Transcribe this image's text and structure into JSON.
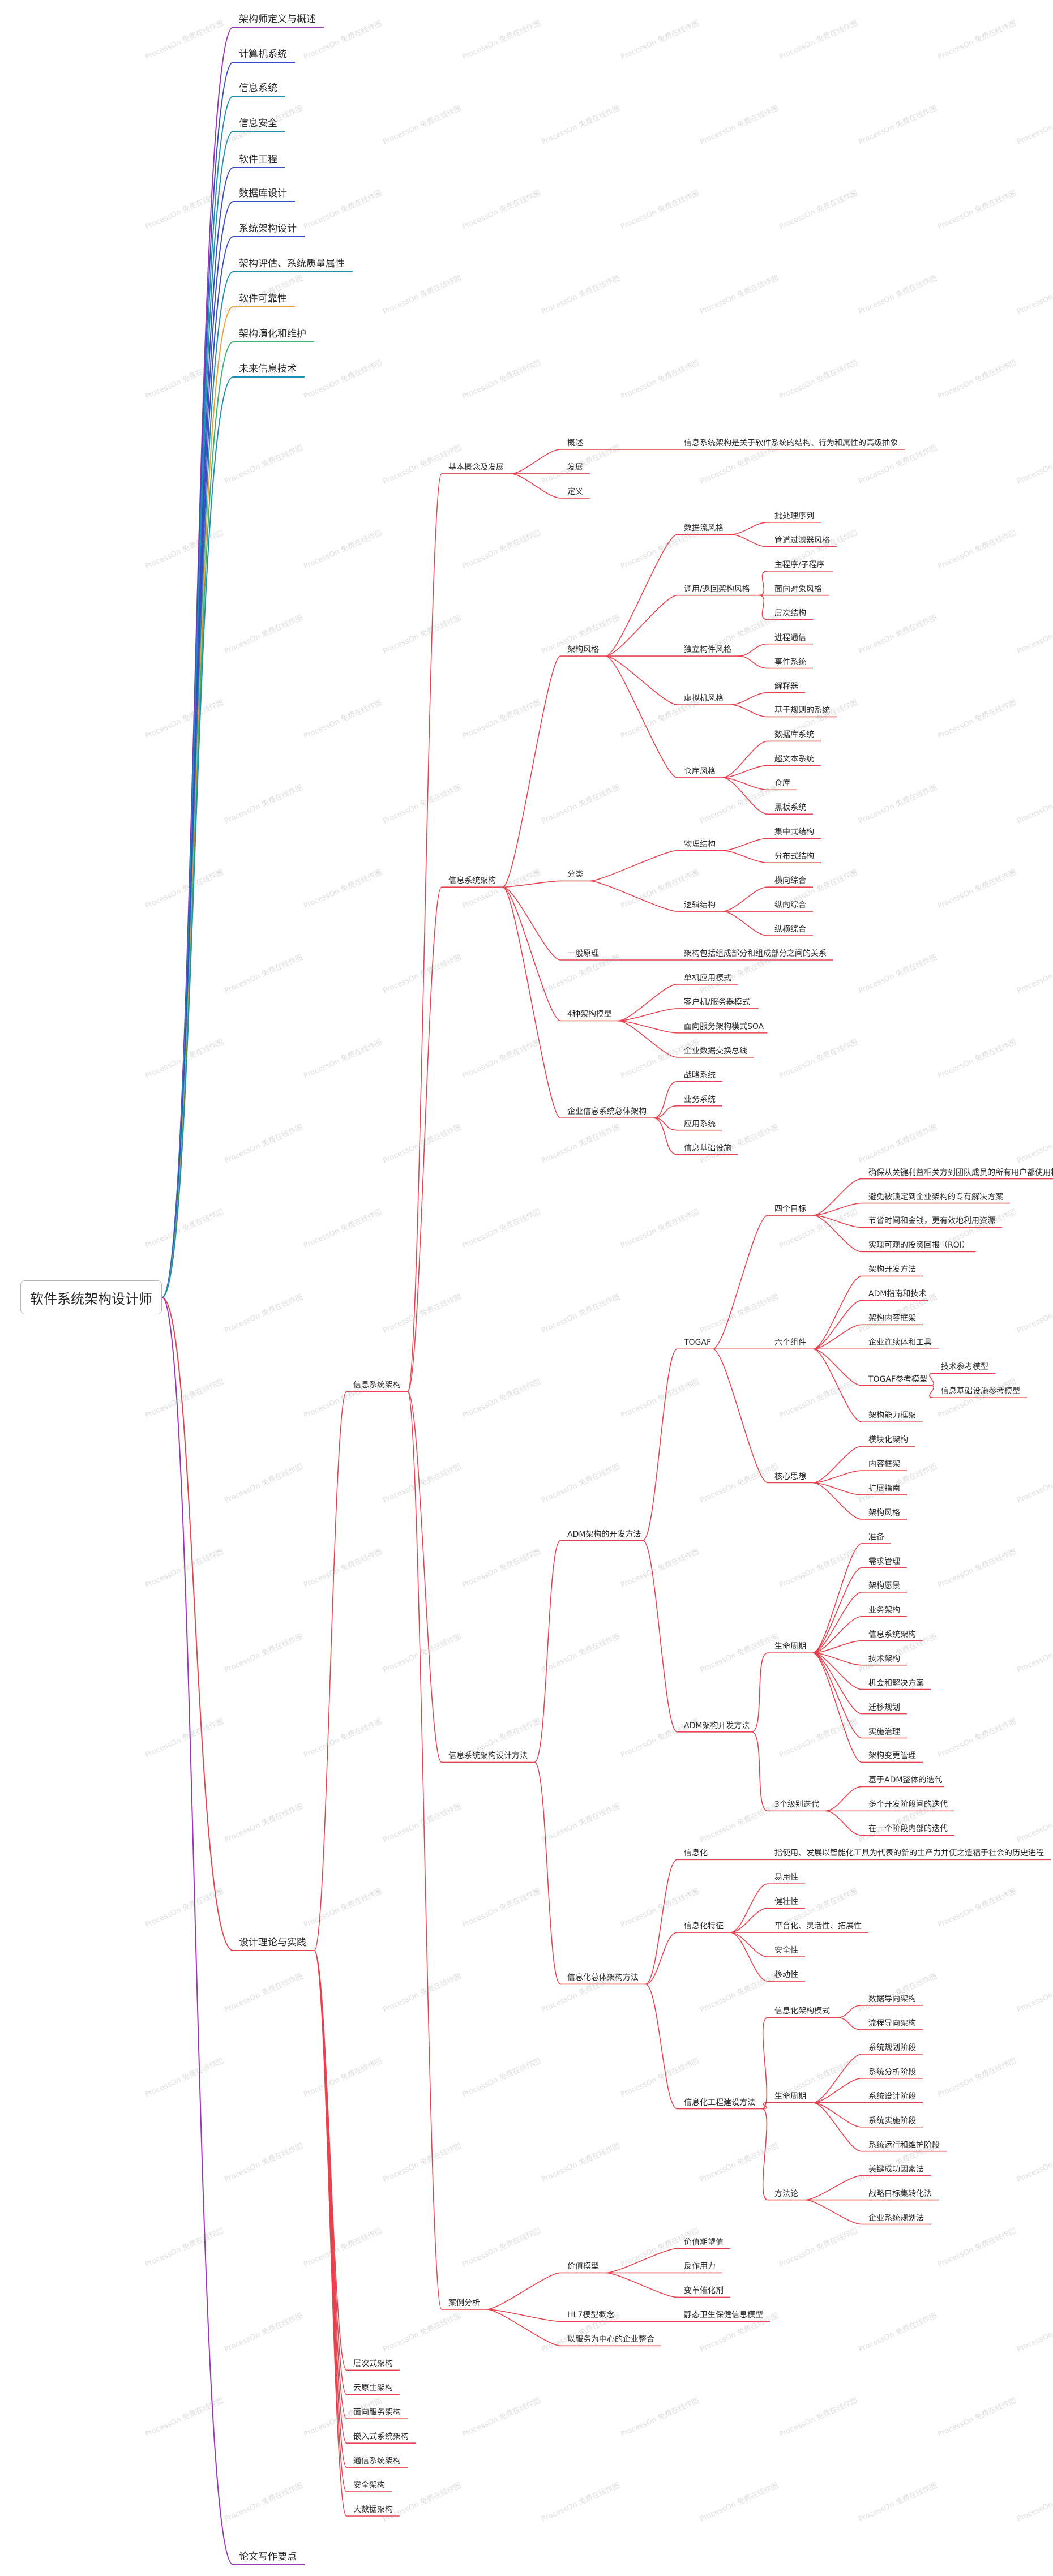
{
  "root": "软件系统架构设计师",
  "watermark": "ProcessOn 免费在线作图",
  "colors": {
    "red": "#e8414d",
    "purple": "#9a35b5",
    "blue": "#3a4cc4",
    "teal": "#1d8fb0",
    "orange": "#f0a137",
    "green": "#3ab56b"
  },
  "topics": [
    {
      "label": "架构师定义与概述",
      "color": "#9a35b5"
    },
    {
      "label": "计算机系统",
      "color": "#3a4cc4"
    },
    {
      "label": "信息系统",
      "color": "#1d8fb0"
    },
    {
      "label": "信息安全",
      "color": "#1d8fb0"
    },
    {
      "label": "软件工程",
      "color": "#3a4cc4"
    },
    {
      "label": "数据库设计",
      "color": "#3a4cc4"
    },
    {
      "label": "系统架构设计",
      "color": "#3a4cc4"
    },
    {
      "label": "架构评估、系统质量属性",
      "color": "#1d8fb0"
    },
    {
      "label": "软件可靠性",
      "color": "#f0a137"
    },
    {
      "label": "架构演化和维护",
      "color": "#3ab56b"
    },
    {
      "label": "未来信息技术",
      "color": "#1d8fb0"
    },
    {
      "label": "设计理论与实践",
      "color": "#e8414d"
    },
    {
      "label": "论文写作要点",
      "color": "#9a35b5"
    }
  ],
  "tree": {
    "label": "设计理论与实践",
    "children": [
      {
        "label": "信息系统架构",
        "children": [
          {
            "label": "基本概念及发展",
            "children": [
              {
                "label": "概述",
                "children": [
                  {
                    "label": "信息系统架构是关于软件系统的结构、行为和属性的高级抽象"
                  }
                ]
              },
              {
                "label": "发展"
              },
              {
                "label": "定义"
              }
            ]
          },
          {
            "label": "信息系统架构",
            "children": [
              {
                "label": "架构风格",
                "children": [
                  {
                    "label": "数据流风格",
                    "children": [
                      {
                        "label": "批处理序列"
                      },
                      {
                        "label": "管道过滤器风格"
                      }
                    ]
                  },
                  {
                    "label": "调用/返回架构风格",
                    "children": [
                      {
                        "label": "主程序/子程序"
                      },
                      {
                        "label": "面向对象风格"
                      },
                      {
                        "label": "层次结构"
                      }
                    ]
                  },
                  {
                    "label": "独立构件风格",
                    "children": [
                      {
                        "label": "进程通信"
                      },
                      {
                        "label": "事件系统"
                      }
                    ]
                  },
                  {
                    "label": "虚拟机风格",
                    "children": [
                      {
                        "label": "解释器"
                      },
                      {
                        "label": "基于规则的系统"
                      }
                    ]
                  },
                  {
                    "label": "仓库风格",
                    "children": [
                      {
                        "label": "数据库系统"
                      },
                      {
                        "label": "超文本系统"
                      },
                      {
                        "label": "仓库"
                      },
                      {
                        "label": "黑板系统"
                      }
                    ]
                  }
                ]
              },
              {
                "label": "分类",
                "children": [
                  {
                    "label": "物理结构",
                    "children": [
                      {
                        "label": "集中式结构"
                      },
                      {
                        "label": "分布式结构"
                      }
                    ]
                  },
                  {
                    "label": "逻辑结构",
                    "children": [
                      {
                        "label": "横向综合"
                      },
                      {
                        "label": "纵向综合"
                      },
                      {
                        "label": "纵横综合"
                      }
                    ]
                  }
                ]
              },
              {
                "label": "一般原理",
                "children": [
                  {
                    "label": "架构包括组成部分和组成部分之间的关系"
                  }
                ]
              },
              {
                "label": "4种架构模型",
                "children": [
                  {
                    "label": "单机应用模式"
                  },
                  {
                    "label": "客户机/服务器模式"
                  },
                  {
                    "label": "面向服务架构模式SOA"
                  },
                  {
                    "label": "企业数据交换总线"
                  }
                ]
              },
              {
                "label": "企业信息系统总体架构",
                "children": [
                  {
                    "label": "战略系统"
                  },
                  {
                    "label": "业务系统"
                  },
                  {
                    "label": "应用系统"
                  },
                  {
                    "label": "信息基础设施"
                  }
                ]
              }
            ]
          },
          {
            "label": "信息系统架构设计方法",
            "children": [
              {
                "label": "ADM架构的开发方法",
                "children": [
                  {
                    "label": "TOGAF",
                    "children": [
                      {
                        "label": "四个目标",
                        "children": [
                          {
                            "label": "确保从关键利益相关方到团队成员的所有用户都使用相同的语言"
                          },
                          {
                            "label": "避免被锁定到企业架构的专有解决方案"
                          },
                          {
                            "label": "节省时间和金钱，更有效地利用资源"
                          },
                          {
                            "label": "实现可观的投资回报（ROI）"
                          }
                        ]
                      },
                      {
                        "label": "六个组件",
                        "children": [
                          {
                            "label": "架构开发方法"
                          },
                          {
                            "label": "ADM指南和技术"
                          },
                          {
                            "label": "架构内容框架"
                          },
                          {
                            "label": "企业连续体和工具"
                          },
                          {
                            "label": "TOGAF参考模型",
                            "children": [
                              {
                                "label": "技术参考模型"
                              },
                              {
                                "label": "信息基础设施参考模型"
                              }
                            ]
                          },
                          {
                            "label": "架构能力框架"
                          }
                        ]
                      },
                      {
                        "label": "核心思想",
                        "children": [
                          {
                            "label": "模块化架构"
                          },
                          {
                            "label": "内容框架"
                          },
                          {
                            "label": "扩展指南"
                          },
                          {
                            "label": "架构风格"
                          }
                        ]
                      }
                    ]
                  },
                  {
                    "label": "ADM架构开发方法",
                    "children": [
                      {
                        "label": "生命周期",
                        "children": [
                          {
                            "label": "准备"
                          },
                          {
                            "label": "需求管理"
                          },
                          {
                            "label": "架构愿景"
                          },
                          {
                            "label": "业务架构"
                          },
                          {
                            "label": "信息系统架构"
                          },
                          {
                            "label": "技术架构"
                          },
                          {
                            "label": "机会和解决方案"
                          },
                          {
                            "label": "迁移规划"
                          },
                          {
                            "label": "实施治理"
                          },
                          {
                            "label": "架构变更管理"
                          }
                        ]
                      },
                      {
                        "label": "3个级别迭代",
                        "children": [
                          {
                            "label": "基于ADM整体的迭代"
                          },
                          {
                            "label": "多个开发阶段间的迭代"
                          },
                          {
                            "label": "在一个阶段内部的迭代"
                          }
                        ]
                      }
                    ]
                  }
                ]
              },
              {
                "label": "信息化总体架构方法",
                "children": [
                  {
                    "label": "信息化",
                    "children": [
                      {
                        "label": "指使用、发展以智能化工具为代表的新的生产力并使之造福于社会的历史进程"
                      }
                    ]
                  },
                  {
                    "label": "信息化特征",
                    "children": [
                      {
                        "label": "易用性"
                      },
                      {
                        "label": "健壮性"
                      },
                      {
                        "label": "平台化、灵活性、拓展性"
                      },
                      {
                        "label": "安全性"
                      },
                      {
                        "label": "移动性"
                      }
                    ]
                  },
                  {
                    "label": "信息化工程建设方法",
                    "children": [
                      {
                        "label": "信息化架构模式",
                        "children": [
                          {
                            "label": "数据导向架构"
                          },
                          {
                            "label": "流程导向架构"
                          }
                        ]
                      },
                      {
                        "label": "生命周期",
                        "children": [
                          {
                            "label": "系统规划阶段"
                          },
                          {
                            "label": "系统分析阶段"
                          },
                          {
                            "label": "系统设计阶段"
                          },
                          {
                            "label": "系统实施阶段"
                          },
                          {
                            "label": "系统运行和维护阶段"
                          }
                        ]
                      },
                      {
                        "label": "方法论",
                        "children": [
                          {
                            "label": "关键成功因素法"
                          },
                          {
                            "label": "战略目标集转化法"
                          },
                          {
                            "label": "企业系统规划法"
                          }
                        ]
                      }
                    ]
                  }
                ]
              }
            ]
          },
          {
            "label": "案例分析",
            "children": [
              {
                "label": "价值模型",
                "children": [
                  {
                    "label": "价值期望值"
                  },
                  {
                    "label": "反作用力"
                  },
                  {
                    "label": "变革催化剂"
                  }
                ]
              },
              {
                "label": "HL7模型概念",
                "children": [
                  {
                    "label": "静态卫生保健信息模型"
                  }
                ]
              },
              {
                "label": "以服务为中心的企业整合"
              }
            ]
          }
        ]
      },
      {
        "label": "层次式架构"
      },
      {
        "label": "云原生架构"
      },
      {
        "label": "面向服务架构"
      },
      {
        "label": "嵌入式系统架构"
      },
      {
        "label": "通信系统架构"
      },
      {
        "label": "安全架构"
      },
      {
        "label": "大数据架构"
      }
    ]
  }
}
